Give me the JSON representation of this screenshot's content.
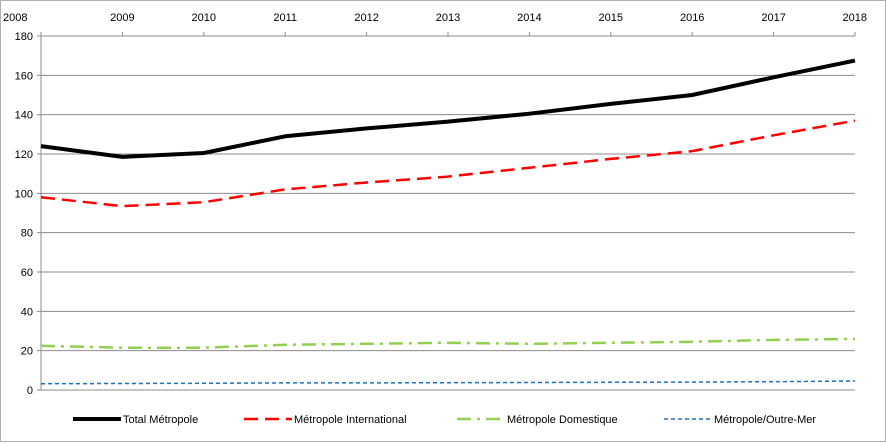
{
  "chart_data": {
    "type": "line",
    "title": "",
    "xlabel": "",
    "ylabel": "",
    "x": [
      "2008",
      "2009",
      "2010",
      "2011",
      "2012",
      "2013",
      "2014",
      "2015",
      "2016",
      "2017",
      "2018"
    ],
    "y_ticks": [
      "0",
      "20",
      "40",
      "60",
      "80",
      "100",
      "120",
      "140",
      "160",
      "180"
    ],
    "ylim": [
      0,
      180
    ],
    "grid": true,
    "legend_position": "bottom",
    "series": [
      {
        "name": "Total Métropole",
        "color": "#000000",
        "style": "solid",
        "values": [
          124,
          118.5,
          120.5,
          129,
          133,
          136.5,
          140.5,
          145.5,
          150,
          159,
          167.5
        ]
      },
      {
        "name": "Métropole International",
        "color": "#ff0000",
        "style": "dash",
        "values": [
          98,
          93.5,
          95.5,
          102,
          105.5,
          108.5,
          113,
          117.5,
          121.5,
          129.5,
          137
        ]
      },
      {
        "name": "Métropole Domestique",
        "color": "#92d050",
        "style": "dash-dot",
        "values": [
          22.5,
          21.5,
          21.5,
          23,
          23.5,
          24,
          23.5,
          24,
          24.5,
          25.5,
          26
        ]
      },
      {
        "name": "Métropole/Outre-Mer",
        "color": "#1f6fbf",
        "style": "short-dash",
        "values": [
          3.2,
          3.3,
          3.4,
          3.6,
          3.6,
          3.7,
          3.8,
          3.9,
          4.0,
          4.2,
          4.6
        ]
      }
    ]
  }
}
